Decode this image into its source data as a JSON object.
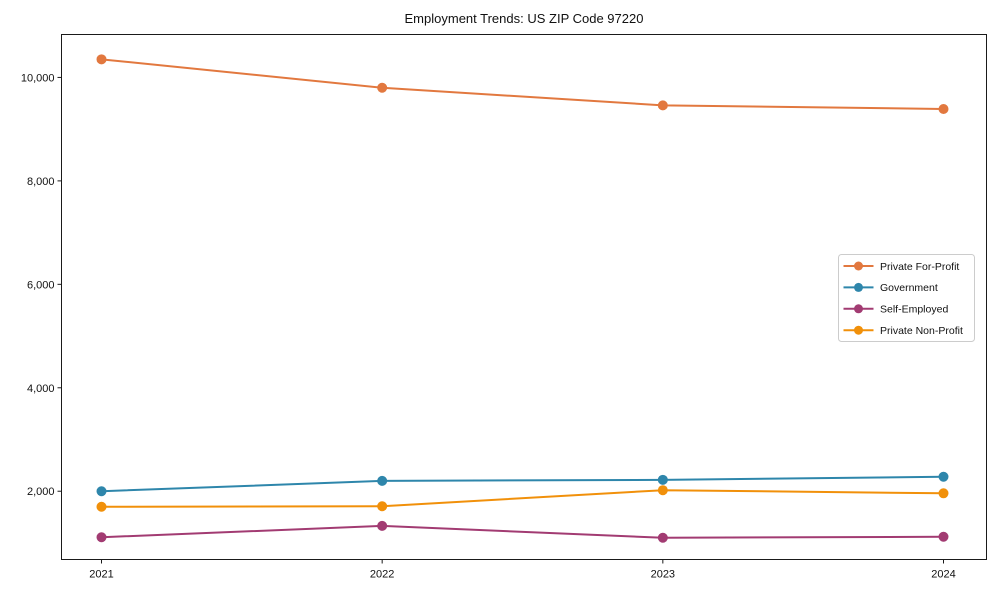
{
  "figure": {
    "background": "#ffffff",
    "axis_color": "#1a1a1a"
  },
  "chart_data": {
    "type": "line",
    "title": "Employment Trends: US ZIP Code 97220",
    "xlabel": "",
    "ylabel": "",
    "x": [
      2021,
      2022,
      2023,
      2024
    ],
    "x_tick_labels": [
      "2021",
      "2022",
      "2023",
      "2024"
    ],
    "series": [
      {
        "name": "Private For-Profit",
        "color": "#E2783F",
        "marker": "circle",
        "values": [
          10350,
          9800,
          9460,
          9390
        ]
      },
      {
        "name": "Government",
        "color": "#2E86AB",
        "marker": "circle",
        "values": [
          2000,
          2200,
          2220,
          2280
        ]
      },
      {
        "name": "Self-Employed",
        "color": "#A23B72",
        "marker": "circle",
        "values": [
          1110,
          1330,
          1100,
          1120
        ]
      },
      {
        "name": "Private Non-Profit",
        "color": "#F1900A",
        "marker": "circle",
        "values": [
          1700,
          1710,
          2020,
          1960
        ]
      }
    ],
    "y_ticks": [
      2000,
      4000,
      6000,
      8000,
      10000
    ],
    "y_tick_labels": [
      "2,000",
      "4,000",
      "6,000",
      "8,000",
      "10,000"
    ],
    "ylim": [
      680,
      10830
    ],
    "grid": false,
    "legend": {
      "position": "right-center",
      "entries": [
        "Private For-Profit",
        "Government",
        "Self-Employed",
        "Private Non-Profit"
      ]
    }
  }
}
